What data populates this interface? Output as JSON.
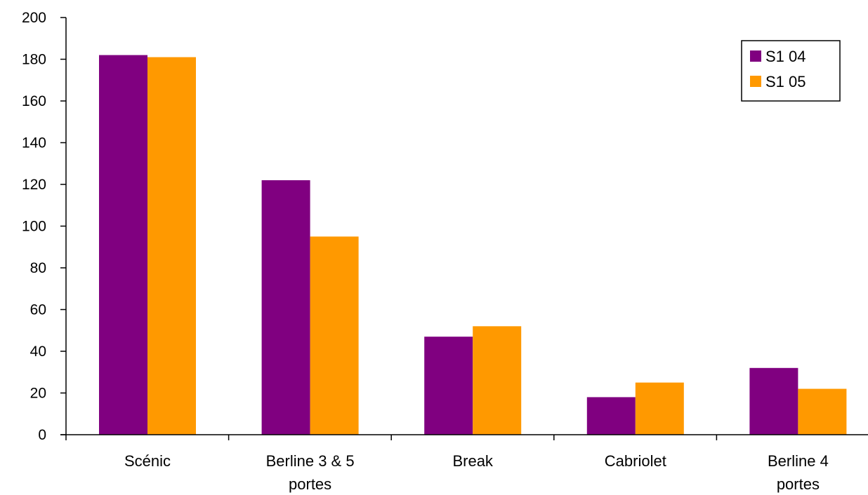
{
  "chart_data": {
    "type": "bar",
    "categories": [
      [
        "Scénic"
      ],
      [
        "Berline 3 & 5",
        "portes"
      ],
      [
        "Break"
      ],
      [
        "Cabriolet"
      ],
      [
        "Berline 4",
        "portes"
      ]
    ],
    "series": [
      {
        "name": "S1 04",
        "color": "#800080",
        "values": [
          182,
          122,
          47,
          18,
          32
        ]
      },
      {
        "name": "S1 05",
        "color": "#FF9900",
        "values": [
          181,
          95,
          52,
          25,
          22
        ]
      }
    ],
    "ylim": [
      0,
      200
    ],
    "yticks": [
      0,
      20,
      40,
      60,
      80,
      100,
      120,
      140,
      160,
      180,
      200
    ],
    "grid": false,
    "legend_position": "top-right",
    "title": "",
    "xlabel": "",
    "ylabel": ""
  }
}
